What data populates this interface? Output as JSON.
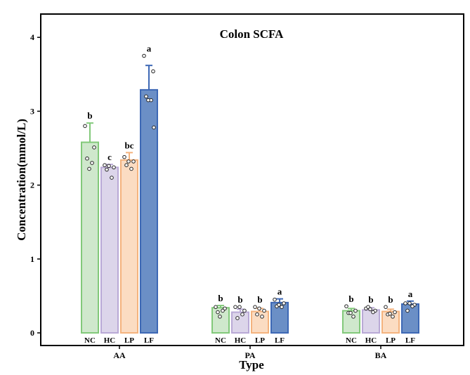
{
  "chart_data": {
    "type": "bar",
    "title": "Colon SCFA",
    "xlabel": "Type",
    "ylabel": "Concentration(mmol/L)",
    "ylim": [
      0,
      4.2
    ],
    "yticks": [
      0,
      1,
      2,
      3,
      4
    ],
    "categories": [
      "AA",
      "PA",
      "BA"
    ],
    "groups": [
      "NC",
      "HC",
      "LP",
      "LF"
    ],
    "colors": {
      "NC": {
        "fill": "#cfe8cc",
        "stroke": "#82c97a"
      },
      "HC": {
        "fill": "#dcd5ea",
        "stroke": "#b9a9d6"
      },
      "LP": {
        "fill": "#fbdcc2",
        "stroke": "#f4b37e"
      },
      "LF": {
        "fill": "#6b8fc6",
        "stroke": "#3d68b5"
      }
    },
    "series": [
      {
        "name": "NC",
        "values": [
          2.58,
          0.34,
          0.3
        ],
        "errors": [
          0.26,
          0.03,
          0.03
        ],
        "labels": [
          "b",
          "b",
          "b"
        ],
        "points": [
          [
            2.8,
            2.51,
            2.36,
            2.3,
            2.22
          ],
          [
            0.35,
            0.33,
            0.28,
            0.3,
            0.22
          ],
          [
            0.36,
            0.3,
            0.27,
            0.22,
            0.27
          ]
        ]
      },
      {
        "name": "HC",
        "values": [
          2.24,
          0.28,
          0.31
        ],
        "errors": [
          0.04,
          0.04,
          0.03
        ],
        "labels": [
          "c",
          "b",
          "b"
        ],
        "points": [
          [
            2.27,
            2.24,
            2.21,
            2.1,
            2.26
          ],
          [
            0.35,
            0.3,
            0.2,
            0.25,
            0.35
          ],
          [
            0.33,
            0.3,
            0.35,
            0.28,
            0.32
          ]
        ]
      },
      {
        "name": "LP",
        "values": [
          2.34,
          0.29,
          0.29
        ],
        "errors": [
          0.1,
          0.04,
          0.03
        ],
        "labels": [
          "bc",
          "b",
          "b"
        ],
        "points": [
          [
            2.38,
            2.32,
            2.27,
            2.22,
            2.32
          ],
          [
            0.35,
            0.3,
            0.25,
            0.22,
            0.33
          ],
          [
            0.35,
            0.28,
            0.25,
            0.22,
            0.26
          ]
        ]
      },
      {
        "name": "LF",
        "values": [
          3.29,
          0.41,
          0.39
        ],
        "errors": [
          0.33,
          0.05,
          0.04
        ],
        "labels": [
          "a",
          "a",
          "a"
        ],
        "points": [
          [
            3.75,
            3.54,
            3.2,
            3.15,
            3.15,
            2.78
          ],
          [
            0.45,
            0.4,
            0.36,
            0.35,
            0.38
          ],
          [
            0.4,
            0.38,
            0.3,
            0.36,
            0.4
          ]
        ]
      }
    ]
  }
}
